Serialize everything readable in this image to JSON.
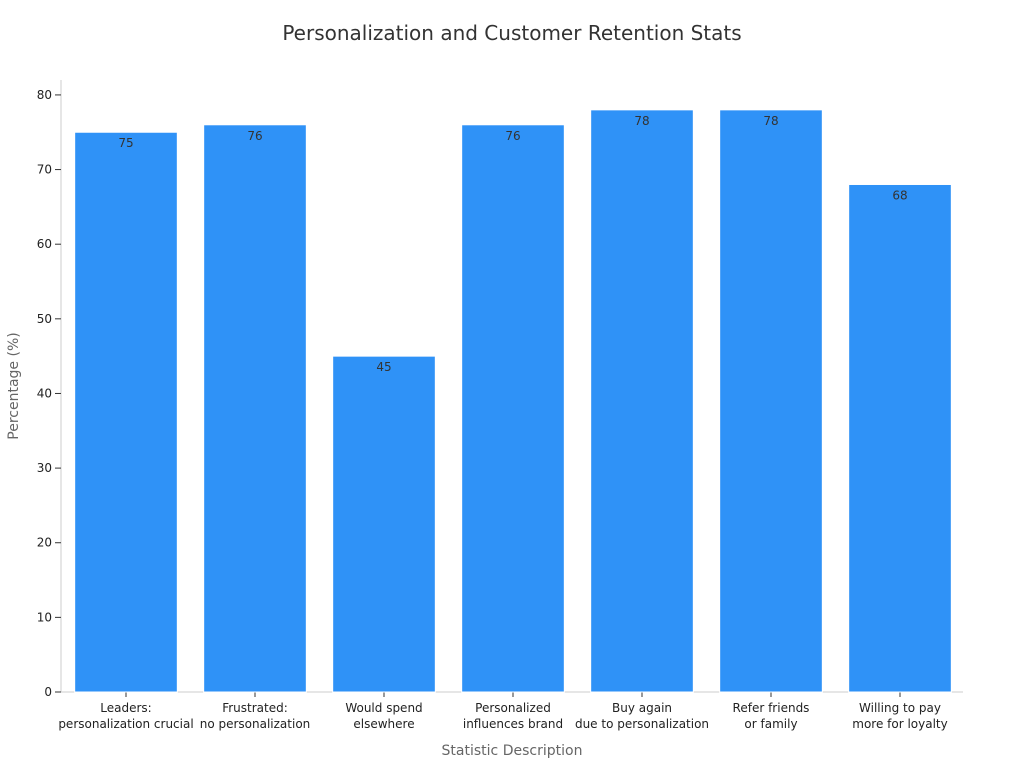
{
  "chart_data": {
    "type": "bar",
    "title": "Personalization and Customer Retention Stats",
    "xlabel": "Statistic Description",
    "ylabel": "Percentage (%)",
    "ylim": [
      0,
      82
    ],
    "yticks": [
      0,
      10,
      20,
      30,
      40,
      50,
      60,
      70,
      80
    ],
    "grid": false,
    "categories": [
      [
        "Leaders:",
        "personalization crucial"
      ],
      [
        "Frustrated:",
        "no personalization"
      ],
      [
        "Would spend",
        "elsewhere"
      ],
      [
        "Personalized",
        "influences brand"
      ],
      [
        "Buy again",
        "due to personalization"
      ],
      [
        "Refer friends",
        "or family"
      ],
      [
        "Willing to pay",
        "more for loyalty"
      ]
    ],
    "values": [
      75,
      76,
      45,
      76,
      78,
      78,
      68
    ],
    "bar_color": "#2f92f7"
  }
}
